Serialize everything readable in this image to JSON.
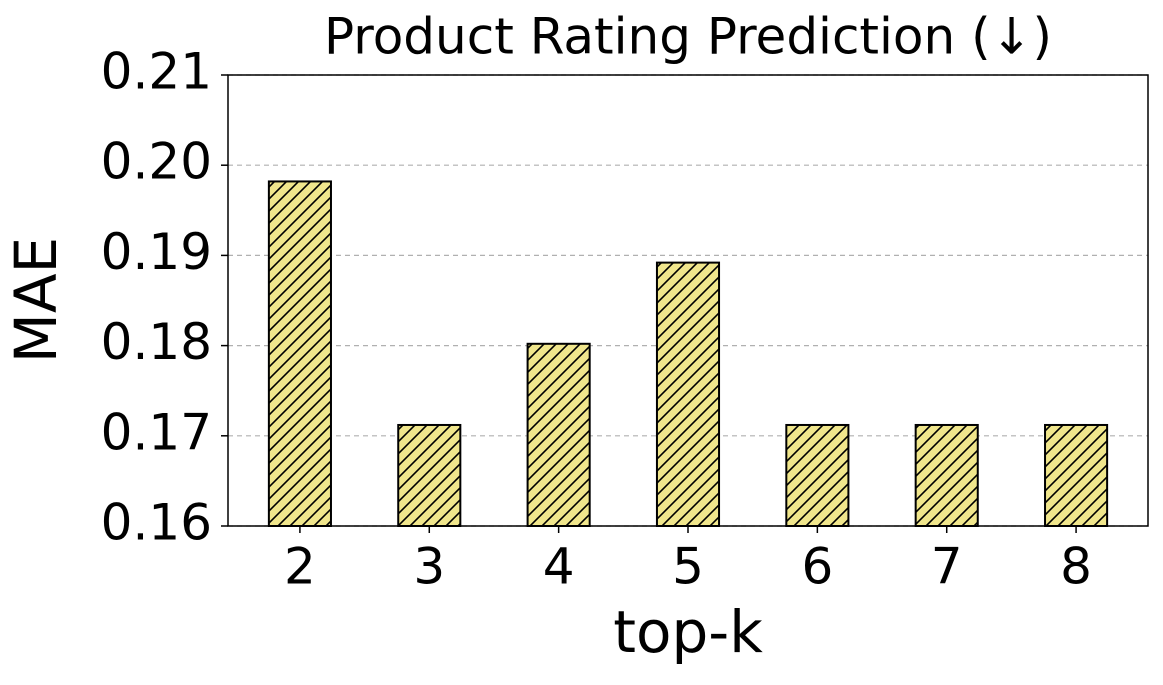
{
  "chart_data": {
    "type": "bar",
    "title": "Product Rating Prediction (↓)",
    "x_label": "top-k",
    "y_label": "MAE",
    "categories": [
      "2",
      "3",
      "4",
      "5",
      "6",
      "7",
      "8"
    ],
    "values": [
      0.1982,
      0.1712,
      0.1802,
      0.1892,
      0.1712,
      0.1712,
      0.1712
    ],
    "color": "#f0e68c",
    "hatch": "//",
    "ylim": [
      0.16,
      0.21
    ],
    "yticks": [
      0.16,
      0.17,
      0.18,
      0.19,
      {
        "value": 0.2,
        "label": "0.20"
      },
      0.21
    ],
    "grid": true
  }
}
